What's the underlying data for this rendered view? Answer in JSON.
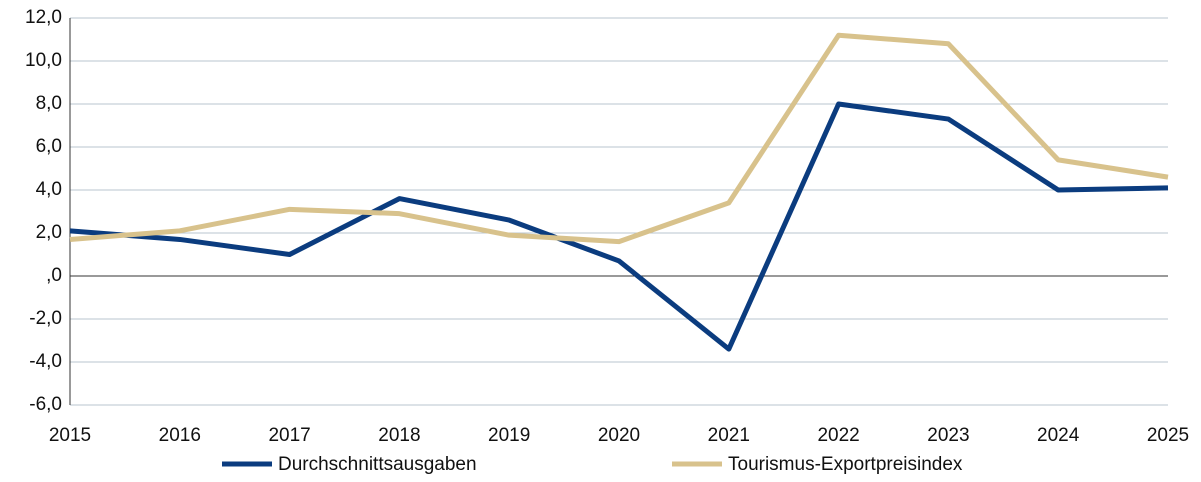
{
  "chart_data": {
    "type": "line",
    "categories": [
      "2015",
      "2016",
      "2017",
      "2018",
      "2019",
      "2020",
      "2021",
      "2022",
      "2023",
      "2024",
      "2025"
    ],
    "series": [
      {
        "name": "Durchschnittsausgaben",
        "color": "#0b3c7f",
        "values": [
          2.1,
          1.7,
          1.0,
          3.6,
          2.6,
          0.7,
          -3.4,
          8.0,
          7.3,
          4.0,
          4.1
        ]
      },
      {
        "name": "Tourismus-Exportpreisindex",
        "color": "#d8c28c",
        "values": [
          1.7,
          2.1,
          3.1,
          2.9,
          1.9,
          1.6,
          3.4,
          11.2,
          10.8,
          5.4,
          4.6
        ]
      }
    ],
    "ylim": [
      -6,
      12
    ],
    "yticks": [
      {
        "value": -6,
        "label": "-6,0"
      },
      {
        "value": -4,
        "label": "-4,0"
      },
      {
        "value": -2,
        "label": "-2,0"
      },
      {
        "value": 0,
        "label": ",0"
      },
      {
        "value": 2,
        "label": "2,0"
      },
      {
        "value": 4,
        "label": "4,0"
      },
      {
        "value": 6,
        "label": "6,0"
      },
      {
        "value": 8,
        "label": "8,0"
      },
      {
        "value": 10,
        "label": "10,0"
      },
      {
        "value": 12,
        "label": "12,0"
      }
    ],
    "grid": true,
    "legend": "bottom"
  }
}
